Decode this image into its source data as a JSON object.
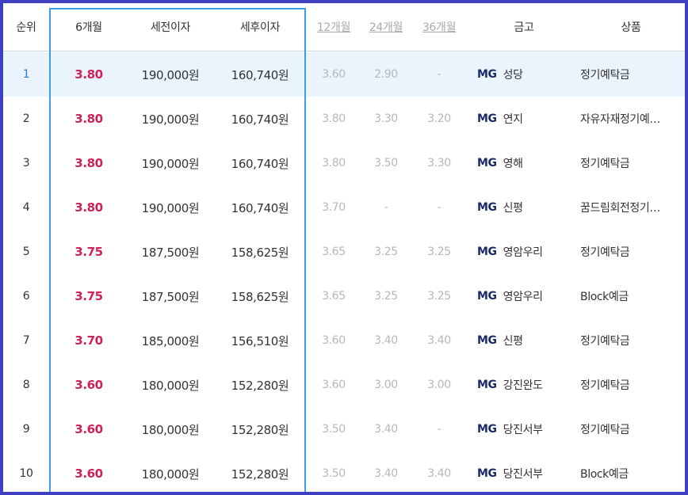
{
  "columns": {
    "rank": "순위",
    "m6": "6개월",
    "pre_tax": "세전이자",
    "post_tax": "세후이자",
    "m12": "12개월",
    "m24": "24개월",
    "m36": "36개월",
    "bank": "금고",
    "product": "상품"
  },
  "bank_prefix": "MG",
  "accent_colors": {
    "frame_border": "#3f3fc4",
    "highlight_border": "#3a9ee0",
    "rate_6m": "#d0215a",
    "top_row_bg": "#eaf4fd"
  },
  "rows": [
    {
      "rank": "1",
      "m6": "3.80",
      "pre_tax": "190,000원",
      "post_tax": "160,740원",
      "m12": "3.60",
      "m24": "2.90",
      "m36": "-",
      "bank": "성당",
      "product": "정기예탁금"
    },
    {
      "rank": "2",
      "m6": "3.80",
      "pre_tax": "190,000원",
      "post_tax": "160,740원",
      "m12": "3.80",
      "m24": "3.30",
      "m36": "3.20",
      "bank": "연지",
      "product": "자유자재정기예…"
    },
    {
      "rank": "3",
      "m6": "3.80",
      "pre_tax": "190,000원",
      "post_tax": "160,740원",
      "m12": "3.80",
      "m24": "3.50",
      "m36": "3.30",
      "bank": "영해",
      "product": "정기예탁금"
    },
    {
      "rank": "4",
      "m6": "3.80",
      "pre_tax": "190,000원",
      "post_tax": "160,740원",
      "m12": "3.70",
      "m24": "-",
      "m36": "-",
      "bank": "신평",
      "product": "꿈드림회전정기…"
    },
    {
      "rank": "5",
      "m6": "3.75",
      "pre_tax": "187,500원",
      "post_tax": "158,625원",
      "m12": "3.65",
      "m24": "3.25",
      "m36": "3.25",
      "bank": "영암우리",
      "product": "정기예탁금"
    },
    {
      "rank": "6",
      "m6": "3.75",
      "pre_tax": "187,500원",
      "post_tax": "158,625원",
      "m12": "3.65",
      "m24": "3.25",
      "m36": "3.25",
      "bank": "영암우리",
      "product": "Block예금"
    },
    {
      "rank": "7",
      "m6": "3.70",
      "pre_tax": "185,000원",
      "post_tax": "156,510원",
      "m12": "3.60",
      "m24": "3.40",
      "m36": "3.40",
      "bank": "신평",
      "product": "정기예탁금"
    },
    {
      "rank": "8",
      "m6": "3.60",
      "pre_tax": "180,000원",
      "post_tax": "152,280원",
      "m12": "3.60",
      "m24": "3.00",
      "m36": "3.00",
      "bank": "강진완도",
      "product": "정기예탁금"
    },
    {
      "rank": "9",
      "m6": "3.60",
      "pre_tax": "180,000원",
      "post_tax": "152,280원",
      "m12": "3.50",
      "m24": "3.40",
      "m36": "-",
      "bank": "당진서부",
      "product": "정기예탁금"
    },
    {
      "rank": "10",
      "m6": "3.60",
      "pre_tax": "180,000원",
      "post_tax": "152,280원",
      "m12": "3.50",
      "m24": "3.40",
      "m36": "3.40",
      "bank": "당진서부",
      "product": "Block예금"
    }
  ]
}
